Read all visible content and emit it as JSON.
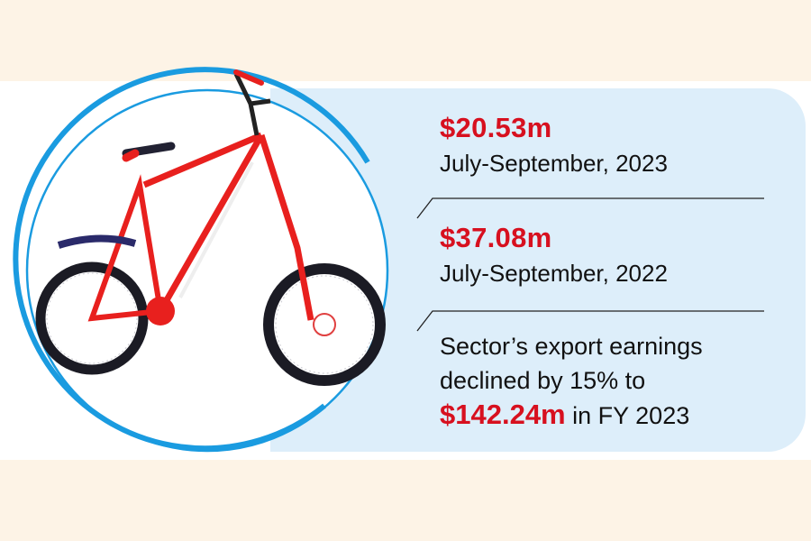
{
  "stats": [
    {
      "value": "$20.53m",
      "period": "July-September, 2023"
    },
    {
      "value": "$37.08m",
      "period": "July-September, 2022"
    }
  ],
  "summary": {
    "line1": "Sector’s export earnings",
    "line2": "declined by 15% to",
    "value": "$142.24m",
    "suffix": " in FY 2023"
  },
  "colors": {
    "accent": "#d7101f",
    "panel": "#ddeefa",
    "ring": "#1a9be0",
    "background": "#fdf3e6"
  },
  "image": "red-bicycle"
}
